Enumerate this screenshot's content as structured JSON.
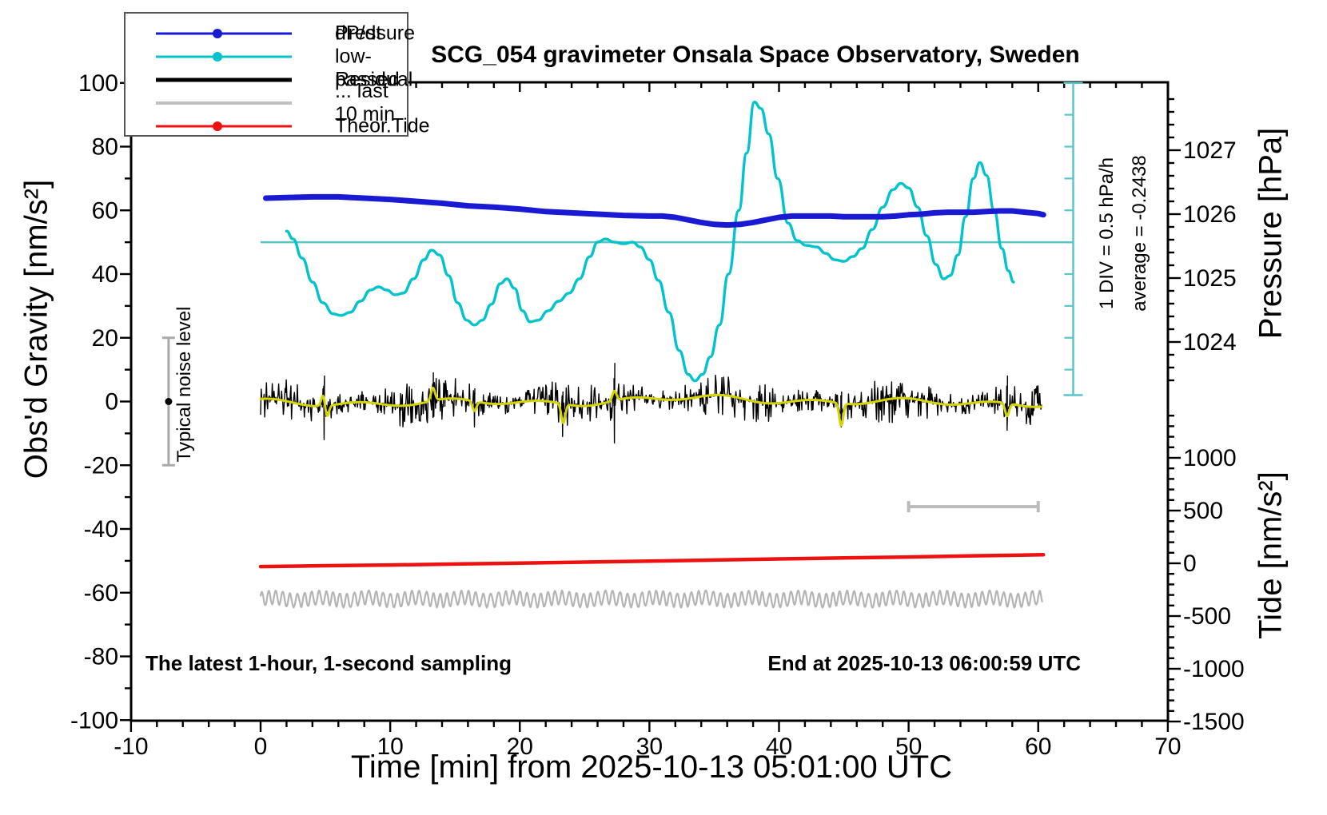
{
  "title": "SCG_054 gravimeter Onsala Space Observatory, Sweden",
  "captions": {
    "bottom_left": "The latest 1-hour, 1-second sampling",
    "bottom_right": "End at 2025-10-13 06:00:59 UTC"
  },
  "annotations": {
    "div_scale": "1 DIV = 0.5 hPa/h",
    "average": "average = -0.2438",
    "noise_label": "Typical noise level"
  },
  "legend": {
    "items": [
      {
        "label": "Pressure",
        "color": "#1a1ad2",
        "marker": "dot-line",
        "thickness": 3
      },
      {
        "label": "dP/dt low-passed",
        "color": "#00c3cc",
        "marker": "dot-line",
        "thickness": 3
      },
      {
        "label": "Residual",
        "color": "#000000",
        "marker": "line",
        "thickness": 5
      },
      {
        "label": "... last 10 min.",
        "color": "#c0c0c0",
        "marker": "line",
        "thickness": 4
      },
      {
        "label": "Theor.Tide",
        "color": "#ee1111",
        "marker": "dot-line",
        "thickness": 3
      }
    ]
  },
  "axes": {
    "x": {
      "label": "Time [min] from 2025-10-13 05:01:00 UTC",
      "range": [
        -10,
        70
      ],
      "major_ticks": [
        -10,
        0,
        10,
        20,
        30,
        40,
        50,
        60,
        70
      ],
      "minor_step": 2
    },
    "gravity": {
      "label": "Obs'd Gravity [nm/s²]",
      "range": [
        -100,
        100
      ],
      "major_ticks": [
        100,
        80,
        60,
        40,
        20,
        0,
        -20,
        -40,
        -60,
        -80,
        -100
      ],
      "minor_step": 10
    },
    "pressure": {
      "label": "Pressure [hPa]",
      "major_ticks": [
        1027,
        1026,
        1025,
        1024
      ],
      "minor_step": 0.2,
      "minor_range": [
        1023.4,
        1027.8
      ]
    },
    "tide": {
      "label": "Tide [nm/s²]",
      "major_ticks": [
        1000,
        500,
        0,
        -500,
        -1000,
        -1500
      ],
      "minor_step": 100,
      "minor_range": [
        -1500,
        1400
      ]
    }
  },
  "colors": {
    "pressure": "#1a1ad2",
    "dpdt": "#00c3cc",
    "ref_cyan": "#5cc6c6",
    "residual": "#000000",
    "smoothed": "#d4d400",
    "last10": "#b4b4b4",
    "tide_red": "#ee1111",
    "noise_bar": "#aaaaaa",
    "range_bar": "#bbbbbb",
    "frame": "#000000"
  },
  "chart_data": {
    "type": "line",
    "title": "SCG_054 gravimeter Onsala Space Observatory, Sweden",
    "xlabel": "Time [min] from 2025-10-13 05:01:00 UTC",
    "x_range": [
      -10,
      70
    ],
    "gravity_axis_range": [
      -100,
      100
    ],
    "pressure_axis_ticks_hPa": [
      1027,
      1026,
      1025,
      1024
    ],
    "tide_axis_range": [
      -1500,
      1500
    ],
    "series": [
      {
        "name": "Pressure",
        "units": "hPa",
        "axis": "pressure",
        "points": [
          [
            0.4,
            1026.25
          ],
          [
            2,
            1026.26
          ],
          [
            4,
            1026.27
          ],
          [
            6,
            1026.27
          ],
          [
            8,
            1026.25
          ],
          [
            10,
            1026.23
          ],
          [
            12,
            1026.2
          ],
          [
            14,
            1026.17
          ],
          [
            16,
            1026.13
          ],
          [
            18,
            1026.11
          ],
          [
            20,
            1026.08
          ],
          [
            22,
            1026.04
          ],
          [
            24,
            1026.02
          ],
          [
            26,
            1026.0
          ],
          [
            28,
            1025.98
          ],
          [
            30,
            1025.97
          ],
          [
            31,
            1025.97
          ],
          [
            32,
            1025.95
          ],
          [
            33,
            1025.91
          ],
          [
            34,
            1025.87
          ],
          [
            35,
            1025.84
          ],
          [
            36,
            1025.83
          ],
          [
            37,
            1025.84
          ],
          [
            38,
            1025.87
          ],
          [
            39,
            1025.91
          ],
          [
            40,
            1025.95
          ],
          [
            41,
            1025.97
          ],
          [
            42,
            1025.97
          ],
          [
            43,
            1025.97
          ],
          [
            44,
            1025.97
          ],
          [
            45,
            1025.96
          ],
          [
            46,
            1025.96
          ],
          [
            47,
            1025.96
          ],
          [
            48,
            1025.96
          ],
          [
            49,
            1025.97
          ],
          [
            50,
            1025.99
          ],
          [
            51,
            1026.0
          ],
          [
            52,
            1026.02
          ],
          [
            53,
            1026.03
          ],
          [
            54,
            1026.03
          ],
          [
            55,
            1026.03
          ],
          [
            56,
            1026.04
          ],
          [
            57,
            1026.05
          ],
          [
            58,
            1026.05
          ],
          [
            59,
            1026.03
          ],
          [
            60,
            1026.01
          ],
          [
            60.4,
            1025.99
          ]
        ]
      },
      {
        "name": "dP/dt low-passed",
        "units": "gravity-axis units (1 DIV = 10 units = 0.5 hPa/h, line at 50 = average -0.2438)",
        "axis": "gravity",
        "points": [
          [
            2.0,
            53.5
          ],
          [
            2.5,
            51
          ],
          [
            3.2,
            45
          ],
          [
            4.0,
            37.5
          ],
          [
            4.8,
            31
          ],
          [
            5.6,
            27.5
          ],
          [
            6.2,
            27
          ],
          [
            6.9,
            28
          ],
          [
            7.7,
            31.5
          ],
          [
            8.5,
            35
          ],
          [
            9.1,
            36
          ],
          [
            9.7,
            35
          ],
          [
            10.4,
            33.5
          ],
          [
            11.0,
            34
          ],
          [
            11.8,
            38.5
          ],
          [
            12.6,
            44.5
          ],
          [
            13.2,
            47.5
          ],
          [
            13.8,
            46
          ],
          [
            14.5,
            39.5
          ],
          [
            15.2,
            31
          ],
          [
            15.9,
            25.5
          ],
          [
            16.5,
            24
          ],
          [
            17.1,
            25.5
          ],
          [
            17.8,
            30.5
          ],
          [
            18.5,
            37
          ],
          [
            19.0,
            38.5
          ],
          [
            19.6,
            35.5
          ],
          [
            20.2,
            28.5
          ],
          [
            20.8,
            25
          ],
          [
            21.4,
            25.5
          ],
          [
            22.2,
            28.5
          ],
          [
            23.0,
            31.5
          ],
          [
            23.8,
            34
          ],
          [
            24.6,
            38.5
          ],
          [
            25.4,
            45.5
          ],
          [
            26.0,
            50
          ],
          [
            26.6,
            51
          ],
          [
            27.3,
            50
          ],
          [
            28.0,
            49.5
          ],
          [
            28.7,
            50
          ],
          [
            29.3,
            48.5
          ],
          [
            30.0,
            44.5
          ],
          [
            30.7,
            38
          ],
          [
            31.5,
            28
          ],
          [
            32.3,
            16
          ],
          [
            33.0,
            8.5
          ],
          [
            33.5,
            6.5
          ],
          [
            34.1,
            8.5
          ],
          [
            34.7,
            14
          ],
          [
            35.4,
            24
          ],
          [
            36.1,
            40
          ],
          [
            36.9,
            60
          ],
          [
            37.5,
            78
          ],
          [
            38.1,
            94
          ],
          [
            38.6,
            92
          ],
          [
            39.2,
            84
          ],
          [
            39.9,
            70
          ],
          [
            40.7,
            56
          ],
          [
            41.4,
            50.5
          ],
          [
            42.1,
            49
          ],
          [
            42.9,
            48.5
          ],
          [
            43.6,
            46.5
          ],
          [
            44.3,
            44.5
          ],
          [
            45.0,
            44
          ],
          [
            45.7,
            45.5
          ],
          [
            46.4,
            48
          ],
          [
            47.2,
            54
          ],
          [
            48.0,
            61
          ],
          [
            48.8,
            66.5
          ],
          [
            49.4,
            68.5
          ],
          [
            50.0,
            67
          ],
          [
            50.7,
            61
          ],
          [
            51.4,
            52
          ],
          [
            52.1,
            43
          ],
          [
            52.7,
            38.5
          ],
          [
            53.2,
            39.5
          ],
          [
            53.8,
            46
          ],
          [
            54.4,
            58
          ],
          [
            55.0,
            70
          ],
          [
            55.5,
            75
          ],
          [
            56.0,
            71
          ],
          [
            56.6,
            60
          ],
          [
            57.2,
            48
          ],
          [
            57.7,
            41
          ],
          [
            58.1,
            37.5
          ]
        ]
      },
      {
        "name": "Theor.Tide",
        "units": "nm/s2 (tide axis)",
        "axis": "tide",
        "points": [
          [
            0,
            -31
          ],
          [
            5,
            -23
          ],
          [
            10,
            -16
          ],
          [
            15,
            -7
          ],
          [
            20,
            2
          ],
          [
            25,
            11
          ],
          [
            30,
            21
          ],
          [
            35,
            31
          ],
          [
            40,
            42
          ],
          [
            45,
            51
          ],
          [
            50,
            60
          ],
          [
            55,
            71
          ],
          [
            60.4,
            81
          ]
        ]
      },
      {
        "name": "Residual",
        "units": "nm/s2 (gravity axis)",
        "axis": "gravity",
        "description": "1-second noise band centered on 0, typical amplitude ±4",
        "center": 0,
        "noise_amp": 3.4,
        "t_range": [
          0,
          60.3
        ],
        "spikes": [
          {
            "t": 4.9,
            "up": 8,
            "down": -12
          },
          {
            "t": 13.3,
            "up": 9,
            "down": -5
          },
          {
            "t": 16.5,
            "up": 4,
            "down": -8
          },
          {
            "t": 23.3,
            "up": 3,
            "down": -11
          },
          {
            "t": 27.3,
            "up": 12,
            "down": -13
          },
          {
            "t": 44.8,
            "up": 3,
            "down": -8
          },
          {
            "t": 57.6,
            "up": 8,
            "down": -9
          }
        ]
      },
      {
        "name": "Residual smoothed (yellow overlay)",
        "units": "nm/s2 (gravity axis)",
        "axis": "gravity",
        "center": 0,
        "t_range": [
          0,
          60.3
        ],
        "bumps": [
          {
            "t": 4.85,
            "a": 4
          },
          {
            "t": 5.1,
            "a": -4
          },
          {
            "t": 13.3,
            "a": 4
          },
          {
            "t": 16.5,
            "a": -3
          },
          {
            "t": 23.35,
            "a": -6
          },
          {
            "t": 27.3,
            "a": 3
          },
          {
            "t": 44.8,
            "a": -7
          },
          {
            "t": 57.6,
            "a": -4
          }
        ]
      },
      {
        "name": "... last 10 min.",
        "units": "nm/s2 (gravity axis, offset display)",
        "axis": "gravity",
        "center": -62,
        "amp": 2.2,
        "period_min": 0.55,
        "t_range": [
          0,
          60.3
        ]
      }
    ],
    "reference_marks": {
      "dpdt_average_line_level": 50,
      "div_bar": {
        "x_min": 62.7,
        "g_top": 100,
        "g_bottom": 2,
        "tick_step_g": 10
      },
      "noise_error_bar": {
        "t": -7.1,
        "g_from": -20,
        "g_to": 20,
        "dot_g": 0
      },
      "last10_range_bar": {
        "t_from": 50,
        "t_to": 60,
        "g": -33
      }
    }
  }
}
